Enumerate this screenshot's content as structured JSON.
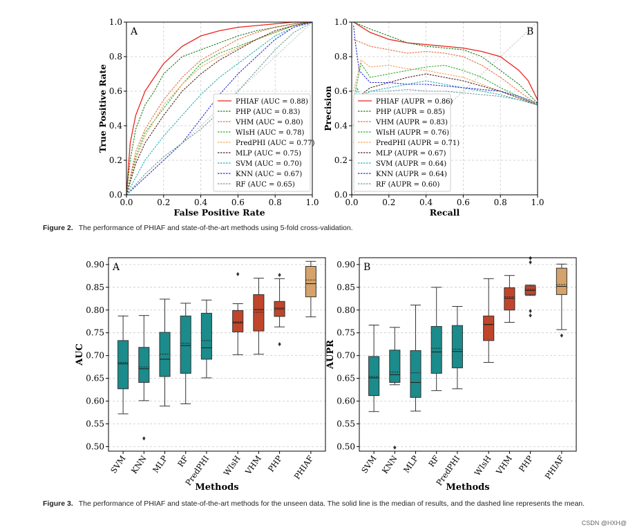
{
  "figure2": {
    "label": "Figure 2.",
    "caption": "The performance of PHIAF and state-of-the-art methods using 5-fold cross-validation."
  },
  "figure3": {
    "label": "Figure 3.",
    "caption": "The performance of PHIAF and state-of-the-art methods for the unseen data. The solid line is the median of results, and the dashed line represents the mean."
  },
  "watermark": "CSDN @HXH@",
  "colors": {
    "teal": "#1b8b8b",
    "red": "#c0452b",
    "tan": "#d4a26a",
    "grid": "#c8c8c8"
  },
  "chart_data": [
    {
      "id": "roc",
      "type": "line",
      "panel_label": "A",
      "title": "",
      "xlabel": "False Positive Rate",
      "ylabel": "True Positive Rate",
      "xlim": [
        0,
        1
      ],
      "ylim": [
        0,
        1
      ],
      "xticks": [
        "0.0",
        "0.2",
        "0.4",
        "0.6",
        "0.8",
        "1.0"
      ],
      "yticks": [
        "0.0",
        "0.2",
        "0.4",
        "0.6",
        "0.8",
        "1.0"
      ],
      "legend_position": "lower-right",
      "series": [
        {
          "name": "PHIAF (AUC = 0.88)",
          "color": "#e8241c",
          "style": "solid",
          "x": [
            0,
            0.02,
            0.05,
            0.1,
            0.15,
            0.2,
            0.3,
            0.4,
            0.5,
            0.6,
            0.7,
            0.8,
            0.9,
            1.0
          ],
          "y": [
            0,
            0.3,
            0.46,
            0.6,
            0.68,
            0.76,
            0.86,
            0.92,
            0.95,
            0.97,
            0.98,
            0.99,
            1.0,
            1.0
          ]
        },
        {
          "name": "PHP (AUC = 0.83)",
          "color": "#1c7a1c",
          "style": "dashed",
          "x": [
            0,
            0.02,
            0.05,
            0.1,
            0.15,
            0.2,
            0.3,
            0.4,
            0.5,
            0.6,
            0.7,
            0.8,
            0.9,
            1.0
          ],
          "y": [
            0,
            0.2,
            0.38,
            0.52,
            0.6,
            0.7,
            0.8,
            0.84,
            0.88,
            0.92,
            0.95,
            0.97,
            0.99,
            1.0
          ]
        },
        {
          "name": "VHM (AUC = 0.80)",
          "color": "#e8663c",
          "style": "dashed",
          "x": [
            0,
            0.05,
            0.1,
            0.2,
            0.3,
            0.4,
            0.5,
            0.6,
            0.7,
            0.8,
            0.9,
            1.0
          ],
          "y": [
            0,
            0.25,
            0.38,
            0.55,
            0.68,
            0.78,
            0.84,
            0.9,
            0.94,
            0.97,
            0.99,
            1.0
          ]
        },
        {
          "name": "WIsH (AUC = 0.78)",
          "color": "#2ea82e",
          "style": "dashed",
          "x": [
            0,
            0.05,
            0.1,
            0.2,
            0.3,
            0.4,
            0.5,
            0.6,
            0.7,
            0.8,
            0.9,
            1.0
          ],
          "y": [
            0,
            0.22,
            0.36,
            0.5,
            0.64,
            0.76,
            0.82,
            0.86,
            0.9,
            0.94,
            0.98,
            1.0
          ]
        },
        {
          "name": "PredPHI (AUC = 0.77)",
          "color": "#f0a25a",
          "style": "dashed",
          "x": [
            0,
            0.05,
            0.1,
            0.2,
            0.3,
            0.4,
            0.5,
            0.6,
            0.7,
            0.8,
            0.9,
            1.0
          ],
          "y": [
            0,
            0.2,
            0.34,
            0.52,
            0.64,
            0.74,
            0.8,
            0.85,
            0.9,
            0.94,
            0.98,
            1.0
          ]
        },
        {
          "name": "MLP (AUC = 0.75)",
          "color": "#4a2020",
          "style": "dashed",
          "x": [
            0,
            0.05,
            0.1,
            0.2,
            0.3,
            0.4,
            0.5,
            0.6,
            0.7,
            0.8,
            0.9,
            1.0
          ],
          "y": [
            0,
            0.18,
            0.3,
            0.46,
            0.6,
            0.7,
            0.78,
            0.84,
            0.9,
            0.95,
            0.98,
            1.0
          ]
        },
        {
          "name": "SVM (AUC = 0.70)",
          "color": "#20b0b0",
          "style": "dashed",
          "x": [
            0,
            0.05,
            0.1,
            0.2,
            0.3,
            0.4,
            0.5,
            0.6,
            0.7,
            0.8,
            0.9,
            1.0
          ],
          "y": [
            0,
            0.1,
            0.2,
            0.34,
            0.46,
            0.58,
            0.68,
            0.76,
            0.84,
            0.92,
            0.97,
            1.0
          ]
        },
        {
          "name": "KNN (AUC = 0.67)",
          "color": "#2a2acc",
          "style": "dashed",
          "x": [
            0,
            0.1,
            0.2,
            0.3,
            0.4,
            0.5,
            0.6,
            0.7,
            0.8,
            0.9,
            1.0
          ],
          "y": [
            0,
            0.1,
            0.2,
            0.3,
            0.44,
            0.58,
            0.7,
            0.8,
            0.9,
            0.97,
            1.0
          ]
        },
        {
          "name": "RF (AUC = 0.65)",
          "color": "#6a9a9a",
          "style": "dashed",
          "x": [
            0,
            0.1,
            0.2,
            0.3,
            0.4,
            0.5,
            0.6,
            0.7,
            0.8,
            0.9,
            1.0
          ],
          "y": [
            0,
            0.12,
            0.22,
            0.3,
            0.38,
            0.48,
            0.6,
            0.72,
            0.84,
            0.94,
            1.0
          ]
        }
      ]
    },
    {
      "id": "pr",
      "type": "line",
      "panel_label": "B",
      "title": "",
      "xlabel": "Recall",
      "ylabel": "Precision",
      "xlim": [
        0,
        1
      ],
      "ylim": [
        0,
        1
      ],
      "xticks": [
        "0.0",
        "0.2",
        "0.4",
        "0.6",
        "0.8",
        "1.0"
      ],
      "yticks": [
        "0.0",
        "0.2",
        "0.4",
        "0.6",
        "0.8",
        "1.0"
      ],
      "legend_position": "lower-left",
      "series": [
        {
          "name": "PHIAF (AUPR = 0.86)",
          "color": "#e8241c",
          "style": "solid",
          "x": [
            0.01,
            0.1,
            0.2,
            0.3,
            0.4,
            0.5,
            0.6,
            0.7,
            0.8,
            0.9,
            0.95,
            1.0
          ],
          "y": [
            1.0,
            0.94,
            0.9,
            0.88,
            0.87,
            0.86,
            0.85,
            0.83,
            0.8,
            0.72,
            0.66,
            0.55
          ]
        },
        {
          "name": "PHP (AUPR = 0.85)",
          "color": "#1c7a1c",
          "style": "dashed",
          "x": [
            0.01,
            0.1,
            0.2,
            0.3,
            0.4,
            0.5,
            0.6,
            0.7,
            0.8,
            0.9,
            1.0
          ],
          "y": [
            1.0,
            0.96,
            0.92,
            0.88,
            0.86,
            0.85,
            0.84,
            0.8,
            0.72,
            0.64,
            0.53
          ]
        },
        {
          "name": "VHM (AUPR = 0.83)",
          "color": "#e8663c",
          "style": "dashed",
          "x": [
            0.01,
            0.1,
            0.2,
            0.3,
            0.4,
            0.5,
            0.6,
            0.7,
            0.8,
            0.9,
            1.0
          ],
          "y": [
            0.9,
            0.86,
            0.84,
            0.82,
            0.83,
            0.82,
            0.8,
            0.75,
            0.68,
            0.6,
            0.52
          ]
        },
        {
          "name": "WIsH (AUPR = 0.76)",
          "color": "#2ea82e",
          "style": "dashed",
          "x": [
            0.01,
            0.05,
            0.1,
            0.2,
            0.3,
            0.4,
            0.5,
            0.6,
            0.7,
            0.8,
            0.9,
            1.0
          ],
          "y": [
            0.55,
            0.76,
            0.68,
            0.7,
            0.72,
            0.74,
            0.75,
            0.72,
            0.68,
            0.62,
            0.57,
            0.52
          ]
        },
        {
          "name": "PredPHI (AUPR = 0.71)",
          "color": "#f0a25a",
          "style": "dashed",
          "x": [
            0.01,
            0.05,
            0.1,
            0.2,
            0.3,
            0.4,
            0.5,
            0.6,
            0.7,
            0.8,
            0.9,
            1.0
          ],
          "y": [
            0.6,
            0.78,
            0.74,
            0.75,
            0.73,
            0.72,
            0.7,
            0.68,
            0.64,
            0.6,
            0.56,
            0.52
          ]
        },
        {
          "name": "MLP (AUPR = 0.67)",
          "color": "#4a2020",
          "style": "dashed",
          "x": [
            0.01,
            0.05,
            0.1,
            0.2,
            0.3,
            0.4,
            0.5,
            0.6,
            0.7,
            0.8,
            0.9,
            1.0
          ],
          "y": [
            0.3,
            0.58,
            0.62,
            0.65,
            0.68,
            0.7,
            0.68,
            0.66,
            0.63,
            0.6,
            0.56,
            0.52
          ]
        },
        {
          "name": "SVM (AUPR = 0.64)",
          "color": "#20b0b0",
          "style": "dashed",
          "x": [
            0.01,
            0.03,
            0.05,
            0.1,
            0.2,
            0.3,
            0.4,
            0.5,
            0.6,
            0.7,
            0.8,
            0.9,
            1.0
          ],
          "y": [
            0.4,
            0.62,
            0.56,
            0.6,
            0.62,
            0.64,
            0.66,
            0.64,
            0.62,
            0.6,
            0.58,
            0.55,
            0.52
          ]
        },
        {
          "name": "KNN (AUPR = 0.64)",
          "color": "#2a2acc",
          "style": "dashed",
          "x": [
            0.01,
            0.02,
            0.04,
            0.1,
            0.2,
            0.3,
            0.4,
            0.5,
            0.6,
            0.7,
            0.8,
            0.9,
            1.0
          ],
          "y": [
            0.98,
            0.88,
            0.72,
            0.65,
            0.65,
            0.64,
            0.64,
            0.63,
            0.62,
            0.61,
            0.6,
            0.57,
            0.53
          ]
        },
        {
          "name": "RF (AUPR = 0.60)",
          "color": "#6a9a9a",
          "style": "dashed",
          "x": [
            0.01,
            0.05,
            0.1,
            0.2,
            0.3,
            0.4,
            0.5,
            0.6,
            0.7,
            0.8,
            0.9,
            1.0
          ],
          "y": [
            0.55,
            0.58,
            0.6,
            0.6,
            0.61,
            0.6,
            0.6,
            0.59,
            0.58,
            0.57,
            0.55,
            0.52
          ]
        }
      ]
    },
    {
      "id": "box-auc",
      "type": "box",
      "panel_label": "A",
      "xlabel": "Methods",
      "ylabel": "AUC",
      "ylim": [
        0.49,
        0.915
      ],
      "yticks": [
        "0.50",
        "0.55",
        "0.60",
        "0.65",
        "0.70",
        "0.75",
        "0.80",
        "0.85",
        "0.90"
      ],
      "categories": [
        "SVM",
        "KNN",
        "MLP",
        "RF",
        "PredPHI",
        "WIsH",
        "VHM",
        "PHP",
        "PHIAF"
      ],
      "positions": [
        0,
        1,
        2,
        3,
        4,
        5.5,
        6.5,
        7.5,
        9
      ],
      "colors": [
        "#1b8b8b",
        "#1b8b8b",
        "#1b8b8b",
        "#1b8b8b",
        "#1b8b8b",
        "#c0452b",
        "#c0452b",
        "#c0452b",
        "#d4a26a"
      ],
      "boxes": [
        {
          "min": 0.572,
          "q1": 0.627,
          "median": 0.682,
          "mean": 0.685,
          "q3": 0.733,
          "max": 0.787,
          "outliers": []
        },
        {
          "min": 0.601,
          "q1": 0.641,
          "median": 0.671,
          "mean": 0.675,
          "q3": 0.718,
          "max": 0.788,
          "outliers": [
            0.518
          ]
        },
        {
          "min": 0.589,
          "q1": 0.654,
          "median": 0.692,
          "mean": 0.703,
          "q3": 0.751,
          "max": 0.824,
          "outliers": []
        },
        {
          "min": 0.594,
          "q1": 0.661,
          "median": 0.722,
          "mean": 0.727,
          "q3": 0.787,
          "max": 0.815,
          "outliers": []
        },
        {
          "min": 0.651,
          "q1": 0.692,
          "median": 0.717,
          "mean": 0.733,
          "q3": 0.793,
          "max": 0.822,
          "outliers": []
        },
        {
          "min": 0.702,
          "q1": 0.752,
          "median": 0.772,
          "mean": 0.774,
          "q3": 0.799,
          "max": 0.814,
          "outliers": [
            0.879
          ]
        },
        {
          "min": 0.703,
          "q1": 0.754,
          "median": 0.801,
          "mean": 0.795,
          "q3": 0.834,
          "max": 0.87,
          "outliers": []
        },
        {
          "min": 0.763,
          "q1": 0.786,
          "median": 0.804,
          "mean": 0.801,
          "q3": 0.819,
          "max": 0.869,
          "outliers": [
            0.877,
            0.725
          ]
        },
        {
          "min": 0.785,
          "q1": 0.829,
          "median": 0.858,
          "mean": 0.866,
          "q3": 0.896,
          "max": 0.907,
          "outliers": []
        }
      ]
    },
    {
      "id": "box-aupr",
      "type": "box",
      "panel_label": "B",
      "xlabel": "Methods",
      "ylabel": "AUPR",
      "ylim": [
        0.49,
        0.915
      ],
      "yticks": [
        "0.50",
        "0.55",
        "0.60",
        "0.65",
        "0.70",
        "0.75",
        "0.80",
        "0.85",
        "0.90"
      ],
      "categories": [
        "SVM",
        "KNN",
        "MLP",
        "RF",
        "PredPHI",
        "WIsH",
        "VHM",
        "PHP",
        "PHIAF"
      ],
      "positions": [
        0,
        1,
        2,
        3,
        4,
        5.5,
        6.5,
        7.5,
        9
      ],
      "colors": [
        "#1b8b8b",
        "#1b8b8b",
        "#1b8b8b",
        "#1b8b8b",
        "#1b8b8b",
        "#c0452b",
        "#c0452b",
        "#c0452b",
        "#d4a26a"
      ],
      "boxes": [
        {
          "min": 0.577,
          "q1": 0.612,
          "median": 0.651,
          "mean": 0.654,
          "q3": 0.698,
          "max": 0.767,
          "outliers": []
        },
        {
          "min": 0.636,
          "q1": 0.641,
          "median": 0.658,
          "mean": 0.664,
          "q3": 0.712,
          "max": 0.762,
          "outliers": [
            0.498
          ]
        },
        {
          "min": 0.578,
          "q1": 0.608,
          "median": 0.641,
          "mean": 0.662,
          "q3": 0.711,
          "max": 0.811,
          "outliers": []
        },
        {
          "min": 0.623,
          "q1": 0.661,
          "median": 0.708,
          "mean": 0.716,
          "q3": 0.764,
          "max": 0.85,
          "outliers": []
        },
        {
          "min": 0.627,
          "q1": 0.673,
          "median": 0.709,
          "mean": 0.714,
          "q3": 0.766,
          "max": 0.808,
          "outliers": []
        },
        {
          "min": 0.685,
          "q1": 0.733,
          "median": 0.768,
          "mean": 0.769,
          "q3": 0.787,
          "max": 0.869,
          "outliers": []
        },
        {
          "min": 0.773,
          "q1": 0.8,
          "median": 0.826,
          "mean": 0.829,
          "q3": 0.849,
          "max": 0.876,
          "outliers": []
        },
        {
          "min": 0.832,
          "q1": 0.834,
          "median": 0.843,
          "mean": 0.846,
          "q3": 0.853,
          "max": 0.855,
          "outliers": [
            0.914,
            0.905,
            0.798,
            0.788
          ]
        },
        {
          "min": 0.757,
          "q1": 0.834,
          "median": 0.852,
          "mean": 0.856,
          "q3": 0.892,
          "max": 0.901,
          "outliers": [
            0.744
          ]
        }
      ]
    }
  ]
}
